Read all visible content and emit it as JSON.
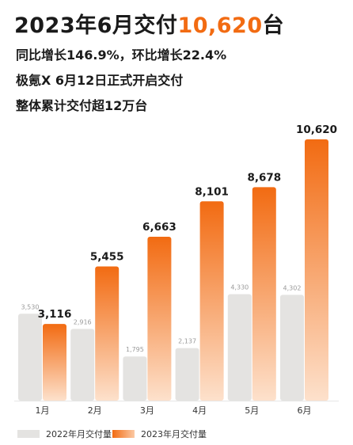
{
  "header": {
    "title_prefix": "2023年6月交付",
    "title_value": "10,620",
    "title_suffix": "台",
    "line1": "同比增长146.9%，环比增长22.4%",
    "line2": "极氪X 6月12日正式开启交付",
    "line3": "整体累计交付超12万台"
  },
  "colors": {
    "accent": "#f26b12",
    "bar_2022": "#e4e3e1",
    "bar_2023_top": "#f26b12",
    "bar_2023_bottom": "#fde1cc"
  },
  "chart_data": {
    "type": "bar",
    "categories": [
      "1月",
      "2月",
      "3月",
      "4月",
      "5月",
      "6月"
    ],
    "series": [
      {
        "name": "2022年月交付量",
        "values": [
          3530,
          2916,
          1795,
          2137,
          4330,
          4302
        ],
        "labels": [
          "3,530",
          "2,916",
          "1,795",
          "2,137",
          "4,330",
          "4,302"
        ]
      },
      {
        "name": "2023年月交付量",
        "values": [
          3116,
          5455,
          6663,
          8101,
          8678,
          10620
        ],
        "labels": [
          "3,116",
          "5,455",
          "6,663",
          "8,101",
          "8,678",
          "10,620"
        ]
      }
    ],
    "ylim": [
      0,
      11200
    ],
    "grid": false,
    "legend_position": "bottom-left"
  }
}
